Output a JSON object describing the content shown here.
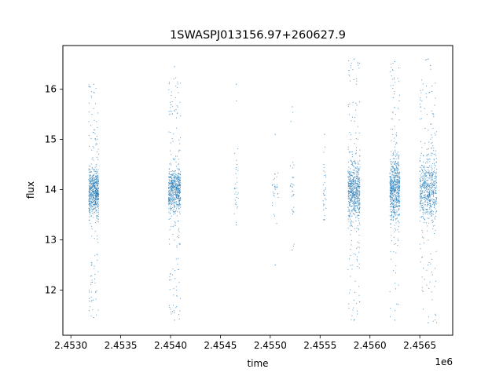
{
  "chart_data": {
    "type": "scatter",
    "title": "1SWASPJ013156.97+260627.9",
    "xlabel": "time",
    "ylabel": "flux",
    "x_offset_label": "1e6",
    "xlim": [
      2.45292,
      2.45683
    ],
    "ylim": [
      11.1,
      16.87
    ],
    "x_ticks": [
      2.453,
      2.4535,
      2.454,
      2.4545,
      2.455,
      2.4555,
      2.456,
      2.4565
    ],
    "x_tick_labels": [
      "2.4530",
      "2.4535",
      "2.4540",
      "2.4545",
      "2.4550",
      "2.4555",
      "2.4560",
      "2.4565"
    ],
    "y_ticks": [
      12,
      13,
      14,
      15,
      16
    ],
    "y_tick_labels": [
      "12",
      "13",
      "14",
      "15",
      "16"
    ],
    "grid": false,
    "marker_color": "#1f77b4",
    "series": [
      {
        "clusters": [
          {
            "x_start": 2.45318,
            "x_end": 2.45328,
            "center": 13.95,
            "spread": 0.22,
            "y_min": 11.45,
            "y_max": 16.1,
            "density": "high"
          },
          {
            "x_start": 2.45398,
            "x_end": 2.4541,
            "center": 14.0,
            "spread": 0.22,
            "y_min": 11.4,
            "y_max": 16.45,
            "density": "high"
          },
          {
            "x_start": 2.45464,
            "x_end": 2.45468,
            "center": 14.0,
            "spread": 0.3,
            "y_min": 13.3,
            "y_max": 16.1,
            "density": "low"
          },
          {
            "x_start": 2.45502,
            "x_end": 2.45508,
            "center": 14.0,
            "spread": 0.2,
            "y_min": 12.5,
            "y_max": 15.1,
            "density": "low"
          },
          {
            "x_start": 2.4552,
            "x_end": 2.45524,
            "center": 14.0,
            "spread": 0.3,
            "y_min": 12.8,
            "y_max": 15.65,
            "density": "low"
          },
          {
            "x_start": 2.45553,
            "x_end": 2.45556,
            "center": 14.0,
            "spread": 0.4,
            "y_min": 13.4,
            "y_max": 15.1,
            "density": "low"
          },
          {
            "x_start": 2.45578,
            "x_end": 2.4559,
            "center": 14.0,
            "spread": 0.3,
            "y_min": 11.4,
            "y_max": 16.6,
            "density": "high"
          },
          {
            "x_start": 2.4562,
            "x_end": 2.4563,
            "center": 14.0,
            "spread": 0.3,
            "y_min": 11.4,
            "y_max": 16.55,
            "density": "high"
          },
          {
            "x_start": 2.4565,
            "x_end": 2.45667,
            "center": 14.0,
            "spread": 0.3,
            "y_min": 11.35,
            "y_max": 16.6,
            "density": "high"
          }
        ]
      }
    ]
  }
}
